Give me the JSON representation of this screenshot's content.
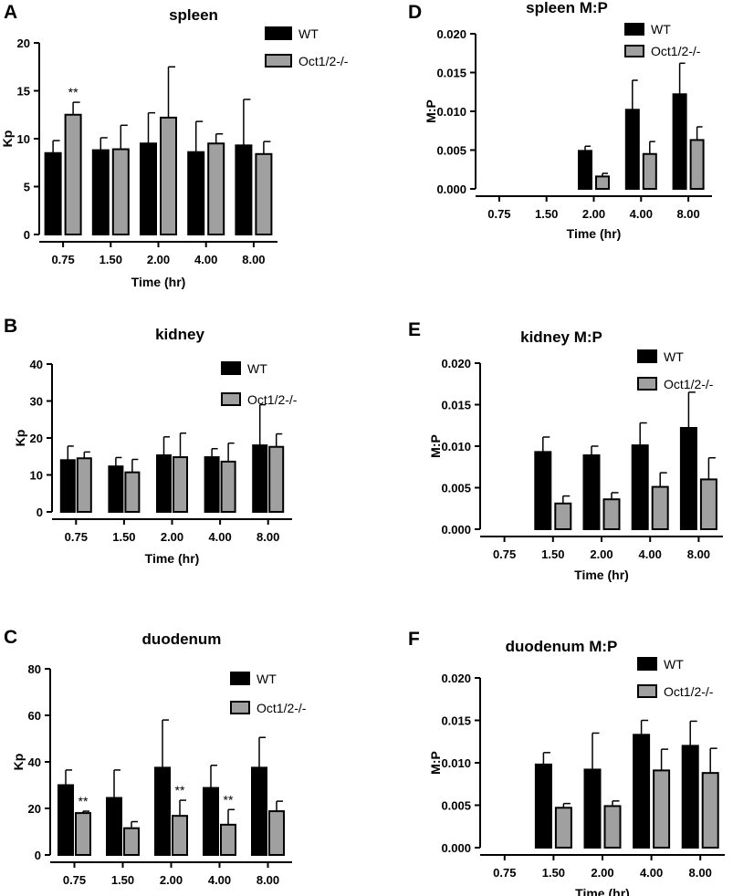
{
  "colors": {
    "wt": "#000000",
    "ko": "#a0a0a0",
    "axis": "#000000"
  },
  "chart_data": [
    {
      "panel": "A",
      "type": "bar",
      "title": "spleen",
      "xlabel": "Time (hr)",
      "ylabel": "Kp",
      "categories": [
        "0.75",
        "1.50",
        "2.00",
        "4.00",
        "8.00"
      ],
      "ylim": [
        0,
        20
      ],
      "yticks": [
        0,
        5,
        10,
        15,
        20
      ],
      "ytick_labels": [
        "0",
        "5",
        "10",
        "15",
        "20"
      ],
      "series": [
        {
          "name": "WT",
          "values": [
            8.5,
            8.8,
            9.5,
            8.6,
            9.3
          ],
          "errors": [
            1.3,
            1.3,
            3.2,
            3.2,
            4.8
          ]
        },
        {
          "name": "Oct1/2-/-",
          "values": [
            12.5,
            8.9,
            12.2,
            9.5,
            8.4
          ],
          "errors": [
            1.3,
            2.5,
            5.3,
            1.0,
            1.3
          ]
        }
      ],
      "annotations": [
        {
          "text": "**",
          "category": 0,
          "series": 1
        }
      ],
      "legend": "top-right"
    },
    {
      "panel": "B",
      "type": "bar",
      "title": "kidney",
      "xlabel": "Time (hr)",
      "ylabel": "Kp",
      "categories": [
        "0.75",
        "1.50",
        "2.00",
        "4.00",
        "8.00"
      ],
      "ylim": [
        0,
        40
      ],
      "yticks": [
        0,
        10,
        20,
        30,
        40
      ],
      "ytick_labels": [
        "0",
        "10",
        "20",
        "30",
        "40"
      ],
      "series": [
        {
          "name": "WT",
          "values": [
            14.0,
            12.3,
            15.3,
            14.8,
            18.0
          ],
          "errors": [
            3.8,
            2.4,
            5.0,
            2.3,
            11.0
          ]
        },
        {
          "name": "Oct1/2-/-",
          "values": [
            14.5,
            10.7,
            14.8,
            13.6,
            17.6
          ],
          "errors": [
            1.7,
            3.5,
            6.5,
            5.0,
            3.5
          ]
        }
      ],
      "annotations": [],
      "legend": "top-right"
    },
    {
      "panel": "C",
      "type": "bar",
      "title": "duodenum",
      "xlabel": "Time (hr)",
      "ylabel": "Kp",
      "categories": [
        "0.75",
        "1.50",
        "2.00",
        "4.00",
        "8.00"
      ],
      "ylim": [
        0,
        80
      ],
      "yticks": [
        0,
        20,
        40,
        60,
        80
      ],
      "ytick_labels": [
        "0",
        "20",
        "40",
        "60",
        "80"
      ],
      "series": [
        {
          "name": "WT",
          "values": [
            30.0,
            24.5,
            37.5,
            28.8,
            37.5
          ],
          "errors": [
            6.5,
            12.0,
            20.5,
            9.7,
            13.0
          ]
        },
        {
          "name": "Oct1/2-/-",
          "values": [
            18.0,
            11.5,
            16.8,
            13.0,
            18.8
          ],
          "errors": [
            0.8,
            2.8,
            6.7,
            6.5,
            4.3
          ]
        }
      ],
      "annotations": [
        {
          "text": "**",
          "category": 0,
          "series": 1
        },
        {
          "text": "**",
          "category": 2,
          "series": 1
        },
        {
          "text": "**",
          "category": 3,
          "series": 1
        }
      ],
      "legend": "top-right"
    },
    {
      "panel": "D",
      "type": "bar",
      "title": "spleen M:P",
      "xlabel": "Time (hr)",
      "ylabel": "M:P",
      "categories": [
        "0.75",
        "1.50",
        "2.00",
        "4.00",
        "8.00"
      ],
      "ylim": [
        0,
        0.02
      ],
      "yticks": [
        0,
        0.005,
        0.01,
        0.015,
        0.02
      ],
      "ytick_labels": [
        "0.000",
        "0.005",
        "0.010",
        "0.015",
        "0.020"
      ],
      "series": [
        {
          "name": "WT",
          "values": [
            null,
            null,
            0.0049,
            0.0102,
            0.0122
          ],
          "errors": [
            0,
            0,
            0.0006,
            0.0038,
            0.004
          ]
        },
        {
          "name": "Oct1/2-/-",
          "values": [
            null,
            null,
            0.0016,
            0.0045,
            0.0063
          ],
          "errors": [
            0,
            0,
            0.0004,
            0.0016,
            0.0017
          ]
        }
      ],
      "annotations": [],
      "legend": "top-right"
    },
    {
      "panel": "E",
      "type": "bar",
      "title": "kidney M:P",
      "xlabel": "Time (hr)",
      "ylabel": "M:P",
      "categories": [
        "0.75",
        "1.50",
        "2.00",
        "4.00",
        "8.00"
      ],
      "ylim": [
        0,
        0.02
      ],
      "yticks": [
        0,
        0.005,
        0.01,
        0.015,
        0.02
      ],
      "ytick_labels": [
        "0.000",
        "0.005",
        "0.010",
        "0.015",
        "0.020"
      ],
      "series": [
        {
          "name": "WT",
          "values": [
            null,
            0.0093,
            0.0089,
            0.0101,
            0.0122
          ],
          "errors": [
            0,
            0.0018,
            0.0011,
            0.0027,
            0.0043
          ]
        },
        {
          "name": "Oct1/2-/-",
          "values": [
            null,
            0.0031,
            0.0036,
            0.0051,
            0.006
          ],
          "errors": [
            0,
            0.0009,
            0.0008,
            0.0017,
            0.0026
          ]
        }
      ],
      "annotations": [],
      "legend": "top-right"
    },
    {
      "panel": "F",
      "type": "bar",
      "title": "duodenum M:P",
      "xlabel": "Time (hr)",
      "ylabel": "M:P",
      "categories": [
        "0.75",
        "1.50",
        "2.00",
        "4.00",
        "8.00"
      ],
      "ylim": [
        0,
        0.02
      ],
      "yticks": [
        0,
        0.005,
        0.01,
        0.015,
        0.02
      ],
      "ytick_labels": [
        "0.000",
        "0.005",
        "0.010",
        "0.015",
        "0.020"
      ],
      "series": [
        {
          "name": "WT",
          "values": [
            null,
            0.0098,
            0.0092,
            0.0133,
            0.012
          ],
          "errors": [
            0,
            0.0014,
            0.0043,
            0.0017,
            0.0029
          ]
        },
        {
          "name": "Oct1/2-/-",
          "values": [
            null,
            0.0047,
            0.0049,
            0.0091,
            0.0088
          ],
          "errors": [
            0,
            0.0005,
            0.0006,
            0.0025,
            0.0029
          ]
        }
      ],
      "annotations": [],
      "legend": "top-right"
    }
  ]
}
